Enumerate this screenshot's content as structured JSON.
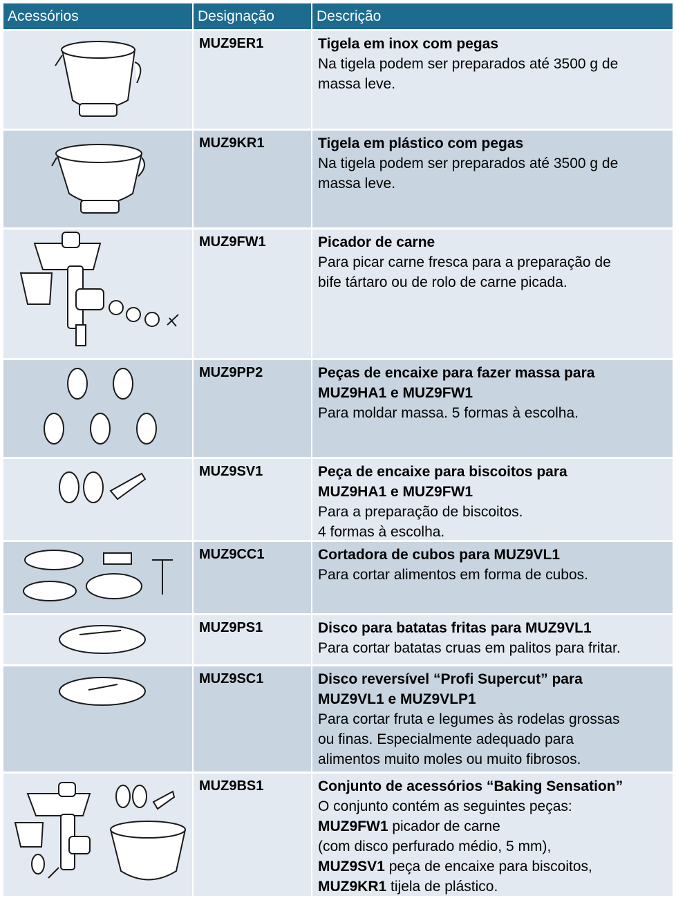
{
  "table": {
    "header": [
      "Acessórios",
      "Designação",
      "Descrição"
    ],
    "rows": [
      {
        "code": "MUZ9ER1",
        "title": [
          "Tigela em inox com pegas"
        ],
        "description": [
          "Na tigela podem ser preparados até 3500 g de",
          "massa leve."
        ]
      },
      {
        "code": "MUZ9KR1",
        "title": [
          "Tigela em plástico com pegas"
        ],
        "description": [
          "Na tigela podem ser preparados até 3500 g de",
          "massa leve."
        ]
      },
      {
        "code": "MUZ9FW1",
        "title": [
          "Picador de carne"
        ],
        "description": [
          "Para picar carne fresca para a preparação de",
          "bife tártaro ou de rolo de carne picada."
        ]
      },
      {
        "code": "MUZ9PP2",
        "title": [
          "Peças de encaixe para fazer massa para",
          "MUZ9HA1 e MUZ9FW1"
        ],
        "description": [
          "Para moldar massa. 5 formas à escolha."
        ]
      },
      {
        "code": "MUZ9SV1",
        "title": [
          "Peça de encaixe para biscoitos para",
          "MUZ9HA1 e MUZ9FW1"
        ],
        "description": [
          "Para a preparação de biscoitos.",
          "4 formas à escolha."
        ]
      },
      {
        "code": "MUZ9CC1",
        "title": [
          "Cortadora de cubos para MUZ9VL1"
        ],
        "description": [
          "Para cortar alimentos em forma de cubos."
        ]
      },
      {
        "code": "MUZ9PS1",
        "title": [
          "Disco para batatas fritas para MUZ9VL1"
        ],
        "description": [
          "Para cortar batatas cruas em palitos para fritar."
        ]
      },
      {
        "code": "MUZ9SC1",
        "title": [
          "Disco reversível “Profi Supercut” para",
          "MUZ9VL1 e MUZ9VLP1"
        ],
        "description": [
          "Para cortar fruta e legumes às rodelas grossas",
          "ou finas. Especialmente adequado para",
          "alimentos muito moles ou muito fibrosos."
        ]
      },
      {
        "code": "MUZ9BS1",
        "title": [
          "Conjunto de acessórios “Baking Sensation”"
        ],
        "description": [
          "O conjunto contém as seguintes peças:",
          {
            "bold": "MUZ9FW1",
            "text": " picador de carne"
          },
          "(com disco perfurado médio, 5 mm),",
          {
            "bold": "MUZ9SV1",
            "text": " peça de encaixe para biscoitos,"
          },
          {
            "bold": "MUZ9KR1",
            "text": " tijela de plástico."
          }
        ]
      }
    ]
  }
}
